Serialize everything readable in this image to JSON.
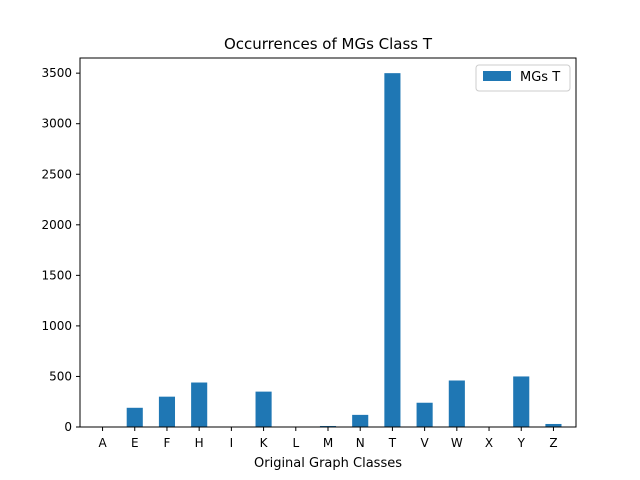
{
  "chart_data": {
    "type": "bar",
    "title": "Occurrences of MGs Class T",
    "xlabel": "Original Graph Classes",
    "ylabel": "",
    "categories": [
      "A",
      "E",
      "F",
      "H",
      "I",
      "K",
      "L",
      "M",
      "N",
      "T",
      "V",
      "W",
      "X",
      "Y",
      "Z"
    ],
    "series": [
      {
        "name": "MGs T",
        "color": "#1f77b4",
        "values": [
          0,
          190,
          300,
          440,
          0,
          350,
          0,
          10,
          120,
          3500,
          240,
          460,
          0,
          500,
          30
        ]
      }
    ],
    "ylim": [
      0,
      3650
    ],
    "yticks": [
      0,
      500,
      1000,
      1500,
      2000,
      2500,
      3000,
      3500
    ],
    "grid": false,
    "legend_position": "top-right"
  }
}
